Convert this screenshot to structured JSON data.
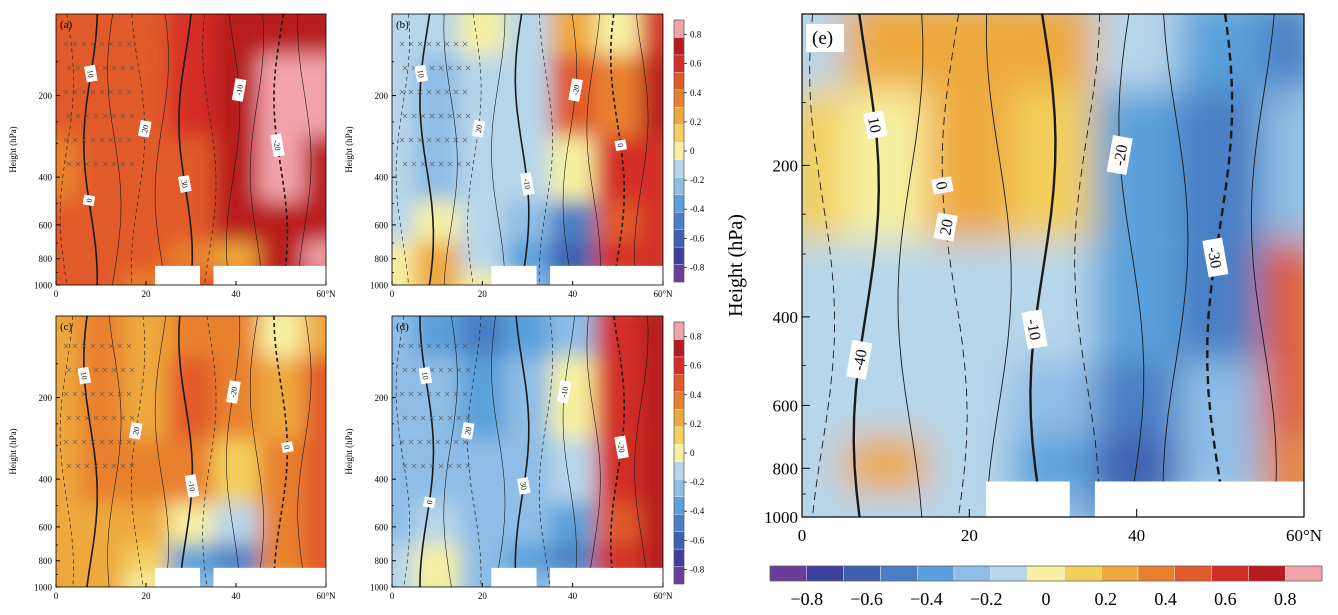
{
  "figure": {
    "colorbar_ticks_small": [
      "0.8",
      "0.6",
      "0.4",
      "0.2",
      "0",
      "-0.2",
      "-0.4",
      "-0.6",
      "-0.8"
    ],
    "colorbar_ticks_large": [
      "−0.8",
      "−0.6",
      "−0.4",
      "−0.2",
      "0",
      "0.2",
      "0.4",
      "0.6",
      "0.8"
    ],
    "colors": [
      "#6a3d9a",
      "#3d3f9e",
      "#3f5fb0",
      "#4a7fc4",
      "#5aa0da",
      "#8fbde6",
      "#b7d6ea",
      "#f6f0a0",
      "#f3cf5c",
      "#eea93e",
      "#e8812f",
      "#e15a2a",
      "#d42d25",
      "#b81b1f",
      "#f3a3aa"
    ]
  },
  "chart_data": [
    {
      "type": "heatmap",
      "panel_label": "(a)",
      "ylabel": "Height (hPa)",
      "x_ticks": [
        "0",
        "20",
        "40",
        "60°N"
      ],
      "y_ticks": [
        "200",
        "400",
        "600",
        "800",
        "1000"
      ],
      "x_range": [
        0,
        60
      ],
      "y_range": [
        100,
        1000
      ],
      "y_scale": "log",
      "x": [
        0,
        10,
        20,
        30,
        40,
        50,
        60
      ],
      "y": [
        100,
        200,
        400,
        600,
        800,
        1000
      ],
      "z": [
        [
          0.3,
          0.35,
          0.3,
          0.4,
          0.5,
          0.6,
          0.6
        ],
        [
          0.3,
          0.35,
          0.35,
          0.4,
          0.6,
          0.75,
          0.65
        ],
        [
          0.25,
          0.35,
          0.3,
          0.35,
          0.6,
          0.7,
          0.6
        ],
        [
          0.3,
          0.35,
          0.3,
          0.3,
          0.5,
          0.6,
          0.6
        ],
        [
          0.3,
          0.3,
          0.3,
          0.2,
          0.15,
          0.6,
          0.7
        ],
        [
          0.3,
          0.3,
          0.25,
          0.35,
          0.3,
          0.6,
          0.6
        ]
      ],
      "contour_labels": [
        "10",
        "20",
        "30",
        "-10",
        "-20",
        "0"
      ]
    },
    {
      "type": "heatmap",
      "panel_label": "(b)",
      "ylabel": "Height (hPa)",
      "x_ticks": [
        "0",
        "20",
        "40",
        "60°N"
      ],
      "y_ticks": [
        "200",
        "400",
        "600",
        "800",
        "1000"
      ],
      "x_range": [
        0,
        60
      ],
      "y_range": [
        100,
        1000
      ],
      "y_scale": "log",
      "x": [
        0,
        10,
        20,
        30,
        40,
        50,
        60
      ],
      "y": [
        100,
        200,
        400,
        600,
        800,
        1000
      ],
      "z": [
        [
          -0.2,
          -0.2,
          -0.1,
          -0.15,
          0.1,
          -0.1,
          0.4
        ],
        [
          -0.2,
          -0.25,
          -0.15,
          -0.2,
          0.3,
          0.2,
          0.5
        ],
        [
          -0.2,
          -0.25,
          -0.15,
          -0.2,
          -0.1,
          0.4,
          0.45
        ],
        [
          -0.2,
          -0.1,
          -0.2,
          -0.3,
          -0.45,
          0.3,
          0.4
        ],
        [
          -0.1,
          0.1,
          -0.15,
          -0.35,
          -0.6,
          0.4,
          0.45
        ],
        [
          -0.1,
          0.15,
          -0.1,
          -0.3,
          -0.5,
          0.3,
          0.4
        ]
      ],
      "contour_labels": [
        "10",
        "20",
        "-10",
        "-20",
        "0"
      ]
    },
    {
      "type": "heatmap",
      "panel_label": "(c)",
      "ylabel": "Height (hPa)",
      "x_ticks": [
        "0",
        "20",
        "40",
        "60°N"
      ],
      "y_ticks": [
        "200",
        "400",
        "600",
        "800",
        "1000"
      ],
      "x_range": [
        0,
        60
      ],
      "y_range": [
        100,
        1000
      ],
      "y_scale": "log",
      "x": [
        0,
        10,
        20,
        30,
        40,
        50,
        60
      ],
      "y": [
        100,
        200,
        400,
        600,
        800,
        1000
      ],
      "z": [
        [
          0.15,
          0.2,
          0.1,
          0.2,
          0.25,
          -0.1,
          0.1
        ],
        [
          0.1,
          0.25,
          0.15,
          0.3,
          0.25,
          0.1,
          0.3
        ],
        [
          0.1,
          0.2,
          0.2,
          0.25,
          0.05,
          0.2,
          0.3
        ],
        [
          0.15,
          0.1,
          0.1,
          -0.1,
          -0.2,
          0.2,
          0.3
        ],
        [
          0.1,
          0.15,
          0.05,
          -0.35,
          -0.5,
          0.2,
          0.3
        ],
        [
          0.1,
          0.1,
          -0.1,
          -0.3,
          -0.3,
          0.1,
          0.3
        ]
      ],
      "contour_labels": [
        "10",
        "20",
        "-10",
        "-20",
        "0"
      ]
    },
    {
      "type": "heatmap",
      "panel_label": "(d)",
      "ylabel": "Height (hPa)",
      "x_ticks": [
        "0",
        "20",
        "40",
        "60°N"
      ],
      "y_ticks": [
        "200",
        "400",
        "600",
        "800",
        "1000"
      ],
      "x_range": [
        0,
        60
      ],
      "y_range": [
        100,
        1000
      ],
      "y_scale": "log",
      "x": [
        0,
        10,
        20,
        30,
        40,
        50,
        60
      ],
      "y": [
        100,
        200,
        400,
        600,
        800,
        1000
      ],
      "z": [
        [
          -0.3,
          -0.4,
          -0.5,
          -0.4,
          -0.3,
          0.4,
          0.6
        ],
        [
          -0.3,
          -0.3,
          -0.35,
          -0.3,
          -0.1,
          0.45,
          0.6
        ],
        [
          -0.3,
          -0.3,
          -0.3,
          -0.25,
          -0.15,
          0.4,
          0.55
        ],
        [
          -0.25,
          -0.2,
          -0.3,
          -0.3,
          -0.35,
          0.35,
          0.5
        ],
        [
          -0.2,
          -0.1,
          -0.3,
          -0.4,
          -0.5,
          0.4,
          0.5
        ],
        [
          -0.2,
          -0.1,
          -0.3,
          -0.3,
          -0.3,
          0.35,
          0.5
        ]
      ],
      "contour_labels": [
        "10",
        "20",
        "30",
        "-10",
        "-20",
        "0"
      ]
    },
    {
      "type": "heatmap",
      "panel_label": "(e)",
      "ylabel": "Height (hPa)",
      "x_ticks": [
        "0",
        "20",
        "40",
        "60°N"
      ],
      "y_ticks": [
        "200",
        "400",
        "600",
        "800",
        "1000"
      ],
      "x_range": [
        0,
        60
      ],
      "y_range": [
        100,
        1000
      ],
      "y_scale": "log",
      "x": [
        0,
        10,
        20,
        30,
        40,
        50,
        60
      ],
      "y": [
        100,
        200,
        400,
        600,
        800,
        1000
      ],
      "z": [
        [
          -0.15,
          0.1,
          0.15,
          0.1,
          -0.15,
          -0.35,
          -0.5
        ],
        [
          0.05,
          -0.1,
          0.1,
          0.05,
          -0.35,
          -0.5,
          -0.3
        ],
        [
          -0.2,
          -0.15,
          -0.15,
          -0.2,
          -0.4,
          -0.5,
          0.3
        ],
        [
          -0.15,
          -0.2,
          -0.2,
          -0.3,
          -0.45,
          -0.3,
          0.35
        ],
        [
          -0.2,
          0.1,
          -0.2,
          -0.35,
          -0.6,
          -0.25,
          0.2
        ],
        [
          -0.2,
          -0.15,
          -0.2,
          -0.3,
          -0.45,
          -0.2,
          0.2
        ]
      ],
      "contour_labels": [
        "10",
        "20",
        "-10",
        "-20",
        "-30",
        "-40",
        "0"
      ]
    }
  ]
}
